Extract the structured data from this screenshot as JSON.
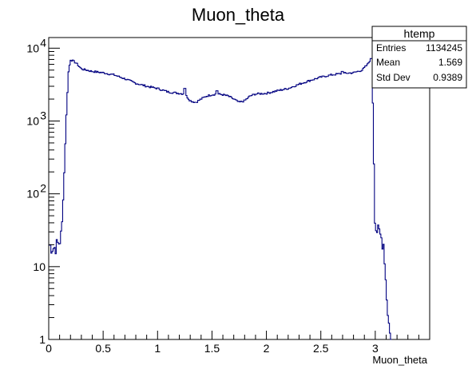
{
  "chart_data": {
    "type": "histogram",
    "title": "Muon_theta",
    "xlabel": "Muon_theta",
    "ylabel": "",
    "xlim": [
      0,
      3.5
    ],
    "ylim": [
      1,
      14000
    ],
    "yscale": "log",
    "grid": false,
    "line_color": "#000080",
    "x_ticks": [
      "0",
      "0.5",
      "1",
      "1.5",
      "2",
      "2.5",
      "3"
    ],
    "y_ticks": [
      {
        "value": 1,
        "label": "1"
      },
      {
        "value": 10,
        "label": "10"
      },
      {
        "value": 100,
        "label": "10",
        "exp": "2"
      },
      {
        "value": 1000,
        "label": "10",
        "exp": "3"
      },
      {
        "value": 10000,
        "label": "10",
        "exp": "4"
      }
    ],
    "stats": {
      "name": "htemp",
      "rows": [
        {
          "label": "Entries",
          "value": "1134245"
        },
        {
          "label": "Mean",
          "value": "1.569"
        },
        {
          "label": "Std Dev",
          "value": "0.9389"
        }
      ]
    },
    "profile": [
      [
        0.0,
        20
      ],
      [
        0.05,
        18
      ],
      [
        0.1,
        22
      ],
      [
        0.12,
        30
      ],
      [
        0.14,
        150
      ],
      [
        0.16,
        1000
      ],
      [
        0.18,
        4500
      ],
      [
        0.2,
        7000
      ],
      [
        0.25,
        6300
      ],
      [
        0.3,
        5200
      ],
      [
        0.4,
        4800
      ],
      [
        0.5,
        4600
      ],
      [
        0.6,
        4300
      ],
      [
        0.7,
        3800
      ],
      [
        0.8,
        3300
      ],
      [
        0.9,
        3000
      ],
      [
        1.0,
        2800
      ],
      [
        1.1,
        2500
      ],
      [
        1.2,
        2400
      ],
      [
        1.25,
        2350
      ],
      [
        1.3,
        1900
      ],
      [
        1.35,
        1800
      ],
      [
        1.4,
        2000
      ],
      [
        1.45,
        2200
      ],
      [
        1.5,
        2300
      ],
      [
        1.55,
        2350
      ],
      [
        1.6,
        2300
      ],
      [
        1.65,
        2200
      ],
      [
        1.7,
        2000
      ],
      [
        1.75,
        1800
      ],
      [
        1.8,
        1900
      ],
      [
        1.85,
        2200
      ],
      [
        1.9,
        2350
      ],
      [
        2.0,
        2400
      ],
      [
        2.1,
        2600
      ],
      [
        2.2,
        2800
      ],
      [
        2.3,
        3200
      ],
      [
        2.4,
        3600
      ],
      [
        2.5,
        4000
      ],
      [
        2.6,
        4300
      ],
      [
        2.7,
        4500
      ],
      [
        2.8,
        4600
      ],
      [
        2.88,
        5000
      ],
      [
        2.93,
        6000
      ],
      [
        2.96,
        7200
      ],
      [
        2.98,
        1500
      ],
      [
        2.99,
        150
      ],
      [
        3.0,
        35
      ],
      [
        3.04,
        28
      ],
      [
        3.08,
        20
      ],
      [
        3.1,
        5
      ],
      [
        3.12,
        2
      ],
      [
        3.14,
        1
      ]
    ],
    "features": [
      {
        "x": 1.25,
        "v": 2800
      },
      {
        "x": 1.55,
        "v": 2600
      },
      {
        "x": 2.7,
        "v": 4800
      },
      {
        "x": 2.96,
        "v": 7200
      }
    ]
  }
}
